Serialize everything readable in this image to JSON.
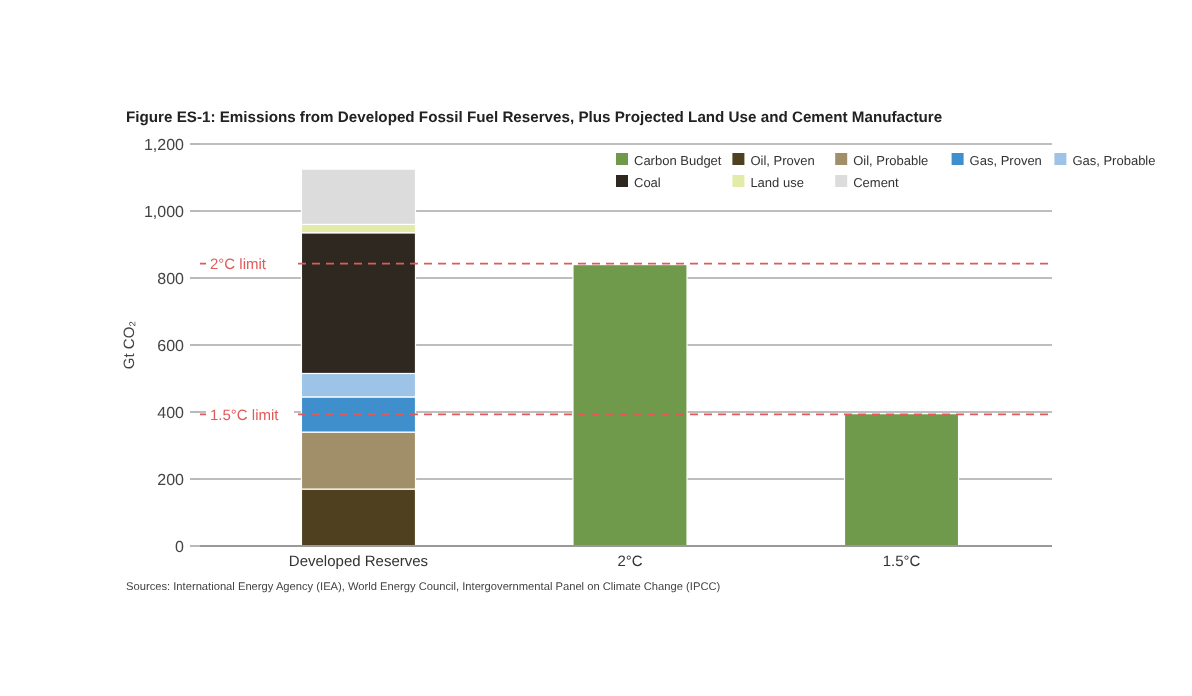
{
  "chart_data": {
    "type": "bar",
    "title": "Figure ES-1: Emissions from Developed Fossil Fuel Reserves, Plus Projected Land Use and Cement Manufacture",
    "ylabel": "Gt CO₂",
    "categories": [
      "Developed Reserves",
      "2°C",
      "1.5°C"
    ],
    "stacked": true,
    "ylim": [
      0,
      1200
    ],
    "yticks": [
      0,
      200,
      400,
      600,
      800,
      {
        "value": 1000,
        "label": "1,000"
      },
      {
        "value": 1200,
        "label": "1,200"
      }
    ],
    "grid": "y",
    "legend": "top right",
    "series": [
      {
        "name": "Carbon Budget",
        "color": "#6f9a4b",
        "values": [
          null,
          840,
          395
        ]
      },
      {
        "name": "Oil, Proven",
        "color": "#4f4020",
        "values": [
          170,
          null,
          null
        ]
      },
      {
        "name": "Oil, Probable",
        "color": "#a08f68",
        "values": [
          170,
          null,
          null
        ]
      },
      {
        "name": "Gas, Proven",
        "color": "#3f8fcc",
        "values": [
          105,
          null,
          null
        ]
      },
      {
        "name": "Gas, Probable",
        "color": "#9dc3e6",
        "values": [
          70,
          null,
          null
        ]
      },
      {
        "name": "Coal",
        "color": "#2e2820",
        "values": [
          420,
          null,
          null
        ]
      },
      {
        "name": "Land use",
        "color": "#e2eca8",
        "values": [
          25,
          null,
          null
        ]
      },
      {
        "name": "Cement",
        "color": "#dcdcdc",
        "values": [
          165,
          null,
          null
        ]
      }
    ],
    "ref_lines": [
      {
        "axis": "y",
        "value": 843,
        "label": "2°C limit",
        "color": "#e05a5a",
        "line_style": "dashed"
      },
      {
        "axis": "y",
        "value": 393,
        "label": "1.5°C limit",
        "color": "#e05a5a",
        "line_style": "dashed"
      }
    ],
    "annotations": [
      "Sources: International Energy Agency (IEA), World Energy Council, Intergovernmental Panel on Climate Change (IPCC)"
    ]
  }
}
